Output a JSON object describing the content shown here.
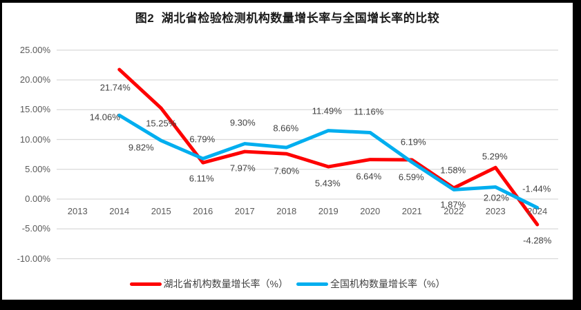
{
  "title": "图2  湖北省检验检测机构数量增长率与全国增长率的比较",
  "colors": {
    "hubei_line": "#fe0000",
    "national_line": "#00aeef",
    "gridline": "#d9d9d9",
    "tick_text": "#595959",
    "data_label_text": "#404040",
    "frame": "#000000",
    "background": "#ffffff"
  },
  "y_axis": {
    "tick_labels": [
      "25.00%",
      "20.00%",
      "15.00%",
      "10.00%",
      "5.00%",
      "0.00%",
      "-5.00%",
      "-10.00%"
    ],
    "tick_values": [
      25,
      20,
      15,
      10,
      5,
      0,
      -5,
      -10
    ]
  },
  "x_axis": {
    "categories": [
      "2013",
      "2014",
      "2015",
      "2016",
      "2017",
      "2018",
      "2019",
      "2020",
      "2021",
      "2022",
      "2023",
      "2024"
    ]
  },
  "legend": {
    "items": [
      {
        "label": "湖北省机构数量增长率（%）",
        "color": "#fe0000"
      },
      {
        "label": "全国机构数量增长率（%）",
        "color": "#00aeef"
      }
    ]
  },
  "chart_data": {
    "type": "line",
    "title": "图2  湖北省检验检测机构数量增长率与全国增长率的比较",
    "x": [
      "2013",
      "2014",
      "2015",
      "2016",
      "2017",
      "2018",
      "2019",
      "2020",
      "2021",
      "2022",
      "2023",
      "2024"
    ],
    "ylim": [
      -10,
      25
    ],
    "grid": "horizontal",
    "legend_position": "bottom",
    "series": [
      {
        "name": "湖北省机构数量增长率（%）",
        "color": "#fe0000",
        "start_index": 1,
        "values": [
          21.74,
          15.25,
          6.11,
          7.97,
          7.6,
          5.43,
          6.64,
          6.59,
          1.87,
          5.29,
          -4.28
        ],
        "labels": [
          "21.74%",
          "15.25%",
          "6.11%",
          "7.97%",
          "7.60%",
          "5.43%",
          "6.64%",
          "6.59%",
          "1.87%",
          "5.29%",
          "-4.28%"
        ],
        "label_offsets": [
          [
            -6,
            26
          ],
          [
            0,
            22
          ],
          [
            -2,
            23
          ],
          [
            -3,
            24
          ],
          [
            0,
            25
          ],
          [
            -1,
            24
          ],
          [
            -2,
            24
          ],
          [
            -1,
            25
          ],
          [
            -1,
            24
          ],
          [
            -1,
            -16
          ],
          [
            0,
            23
          ]
        ]
      },
      {
        "name": "全国机构数量增长率（%）",
        "color": "#00aeef",
        "start_index": 1,
        "values": [
          14.06,
          9.82,
          6.79,
          9.3,
          8.66,
          11.49,
          11.16,
          6.19,
          1.58,
          2.02,
          -1.44
        ],
        "labels": [
          "14.06%",
          "9.82%",
          "6.79%",
          "9.30%",
          "8.66%",
          "11.49%",
          "11.16%",
          "6.19%",
          "1.58%",
          "2.02%",
          "-1.44%"
        ],
        "label_offsets": [
          [
            -21,
            3
          ],
          [
            -29,
            10
          ],
          [
            -1,
            -28
          ],
          [
            -3,
            -31
          ],
          [
            -1,
            -28
          ],
          [
            -2,
            -29
          ],
          [
            -2,
            -30
          ],
          [
            2,
            -29
          ],
          [
            -1,
            -28
          ],
          [
            1,
            15
          ],
          [
            -1,
            -27
          ]
        ]
      }
    ]
  }
}
